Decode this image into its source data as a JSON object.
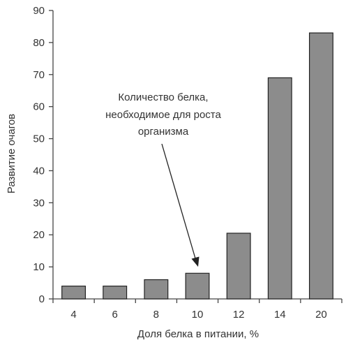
{
  "chart_data": {
    "type": "bar",
    "categories": [
      "4",
      "6",
      "8",
      "10",
      "12",
      "14",
      "20"
    ],
    "values": [
      4,
      4,
      6,
      8,
      20.5,
      69,
      83
    ],
    "title": "",
    "xlabel": "Доля белка в питании, %",
    "ylabel": "Развитие очагов",
    "ylim": [
      0,
      90
    ],
    "yticks": [
      0,
      10,
      20,
      30,
      40,
      50,
      60,
      70,
      80,
      90
    ],
    "grid": false,
    "bar_color": "#8c8c8c",
    "annotation": {
      "lines": [
        "Количество белка,",
        "необходимое для роста",
        "организма"
      ],
      "points_to_category": "10"
    }
  }
}
